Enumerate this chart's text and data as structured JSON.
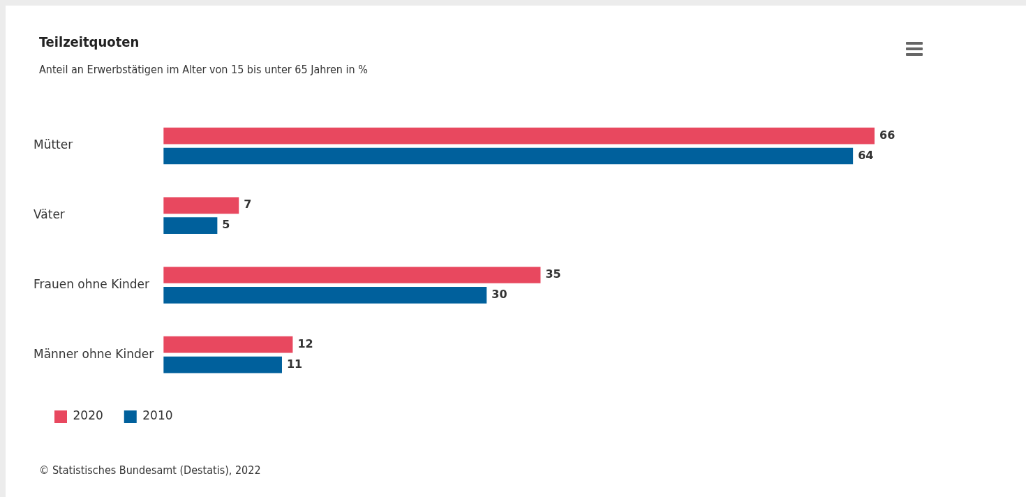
{
  "chart_data": {
    "type": "bar",
    "orientation": "horizontal",
    "title": "Teilzeitquoten",
    "subtitle": "Anteil an Erwerbstätigen im Alter von 15 bis unter 65 Jahren in %",
    "categories": [
      "Mütter",
      "Väter",
      "Frauen ohne Kinder",
      "Männer ohne Kinder"
    ],
    "series": [
      {
        "name": "2020",
        "color": "#e8485f",
        "values": [
          66,
          7,
          35,
          12
        ]
      },
      {
        "name": "2010",
        "color": "#00609c",
        "values": [
          64,
          5,
          30,
          11
        ]
      }
    ],
    "data_labels": true,
    "legend": "bottom left",
    "tick_labels": "y",
    "annotations": [
      "© Statistisches Bundesamt (Destatis), 2022"
    ]
  }
}
